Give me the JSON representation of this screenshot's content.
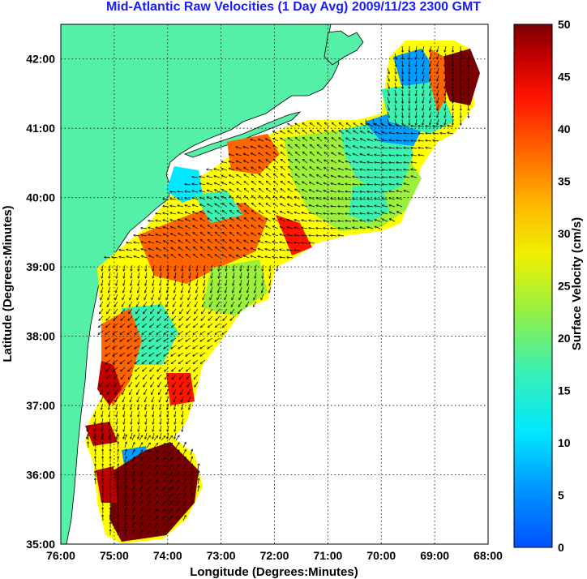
{
  "title": "Mid-Atlantic Raw Velocities (1 Day Avg) 2009/11/23 2300 GMT",
  "xlabel": "Longitude (Degrees:Minutes)",
  "ylabel": "Latitude (Degrees:Minutes)",
  "colorbar_label": "Surface Velocity (cm/s)",
  "x_ticks": [
    "76:00",
    "75:00",
    "74:00",
    "73:00",
    "72:00",
    "71:00",
    "70:00",
    "69:00",
    "68:00"
  ],
  "y_ticks": [
    "42:00",
    "41:00",
    "40:00",
    "39:00",
    "38:00",
    "37:00",
    "36:00",
    "35:00"
  ],
  "colorbar_ticks": [
    "50",
    "45",
    "40",
    "35",
    "30",
    "25",
    "20",
    "15",
    "10",
    "5",
    "0"
  ],
  "colors": {
    "title": "#1a1aff",
    "land": "#55f0a8",
    "grid": "#000000",
    "ocean": "#ffffff"
  },
  "chart_data": {
    "type": "heatmap",
    "title": "Mid-Atlantic Raw Velocities (1 Day Avg) 2009/11/23 2300 GMT",
    "xlabel": "Longitude (Degrees:Minutes)",
    "ylabel": "Latitude (Degrees:Minutes)",
    "xlim": [
      -76,
      -68
    ],
    "ylim": [
      35,
      42.5
    ],
    "colorbar_range": [
      0,
      50
    ],
    "colorbar_units": "cm/s",
    "grid": true,
    "colormap": "jet"
  }
}
